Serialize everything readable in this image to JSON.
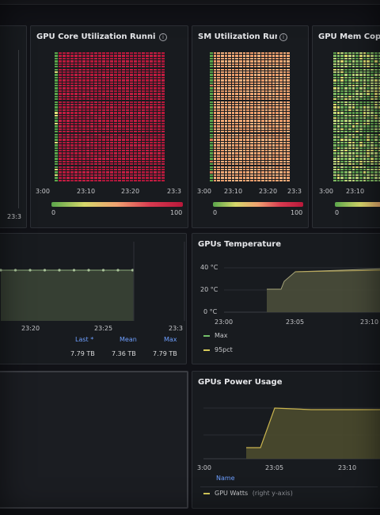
{
  "panels": {
    "gpu_core": {
      "title": "GPU Core Utilization Runnin",
      "x_ticks": [
        "3:00",
        "23:10",
        "23:20",
        "23:3"
      ],
      "colorbar_min": "0",
      "colorbar_max": "100"
    },
    "sm_util": {
      "title": "SM Utilization Run",
      "x_ticks": [
        "3:00",
        "23:10",
        "23:20",
        "23:3"
      ],
      "colorbar_min": "0",
      "colorbar_max": "100"
    },
    "gpu_mem": {
      "title": "GPU Mem Copy",
      "x_ticks": [
        "3:00",
        "23:10"
      ],
      "colorbar_min": "0"
    },
    "left_top": {
      "x_ticks": [
        "23:3"
      ]
    },
    "storage": {
      "x_ticks": [
        "23:20",
        "23:25",
        "23:3"
      ],
      "headers": [
        "Last *",
        "Mean",
        "Max"
      ],
      "values": [
        "7.79 TB",
        "7.36 TB",
        "7.79 TB"
      ]
    },
    "temperature": {
      "title": "GPUs Temperature",
      "y_ticks": [
        "40 °C",
        "20 °C",
        "0 °C"
      ],
      "x_ticks": [
        "23:00",
        "23:05",
        "23:10"
      ],
      "legend": [
        "Max",
        "95pct"
      ]
    },
    "power": {
      "title": "GPUs Power Usage",
      "x_ticks": [
        "3:00",
        "23:05",
        "23:10"
      ],
      "legend_header": "Name",
      "legend": "GPU Watts",
      "legend_note": "(right y-axis)"
    }
  },
  "colors": {
    "heat_red": "#b8183a",
    "heat_orange": "#f0a070",
    "heat_green": "#7fb862",
    "series_green": "#73bf69",
    "series_yellow": "#d6c95a",
    "link_blue": "#6e9fff"
  }
}
